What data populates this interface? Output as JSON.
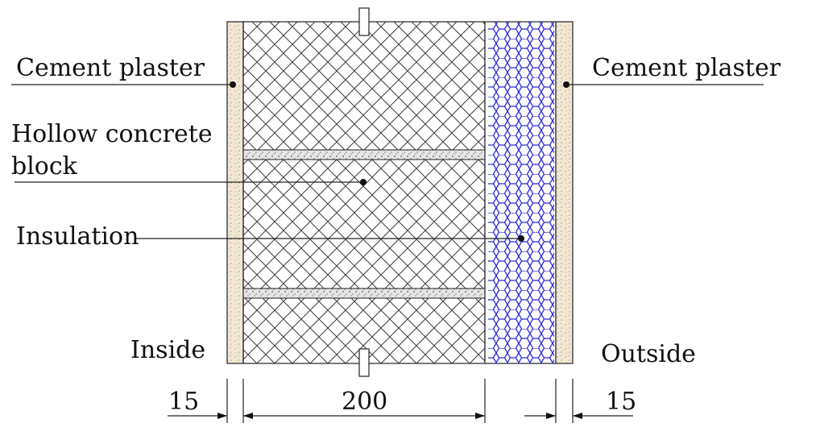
{
  "labels": {
    "cement_plaster_left": "Cement plaster",
    "cement_plaster_right": "Cement plaster",
    "hollow_block_line1": "Hollow concrete",
    "hollow_block_line2": "block",
    "insulation": "Insulation",
    "inside": "Inside",
    "outside": "Outside"
  },
  "dimensions": {
    "plaster_left": "15",
    "block": "200",
    "plaster_right": "15"
  },
  "colors": {
    "insulation_hex": "#2b2bd6",
    "plaster_fill": "#f1e8d6",
    "plaster_speckle": "#c9a97a",
    "hatch": "#333333",
    "mortar_fill": "#e2e2e2"
  }
}
